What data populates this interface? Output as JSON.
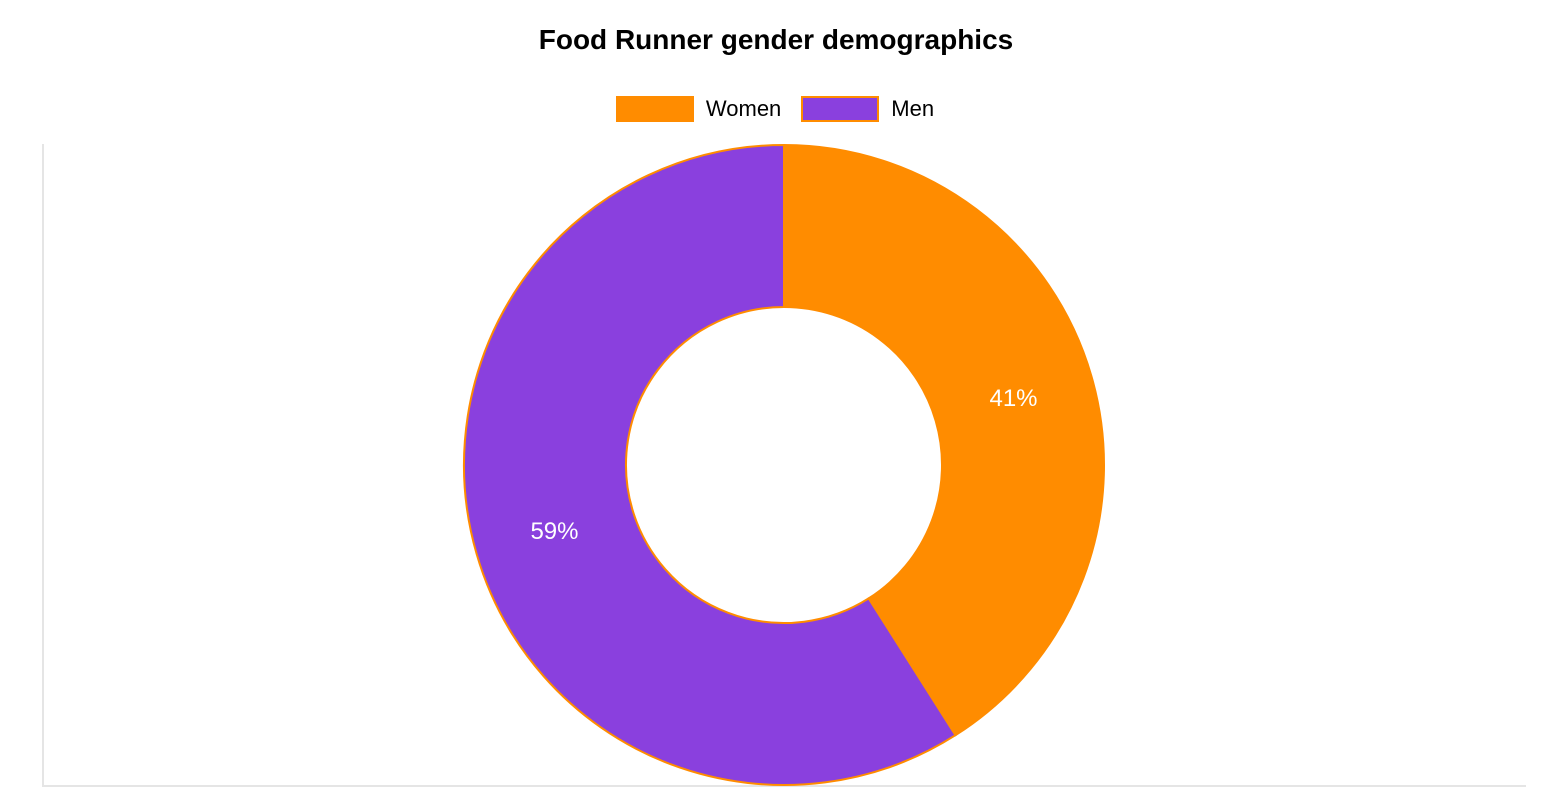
{
  "chart_data": {
    "type": "pie",
    "variant": "donut",
    "title": "Food Runner gender demographics",
    "legend_position": "top",
    "grid": false,
    "categories": [
      "Women",
      "Men"
    ],
    "values": [
      41,
      59
    ],
    "value_labels": [
      "41%",
      "59%"
    ],
    "colors": [
      "#ff8c00",
      "#8a40de"
    ],
    "border_color": "#ff8c00",
    "start_angle": "top, clockwise"
  }
}
